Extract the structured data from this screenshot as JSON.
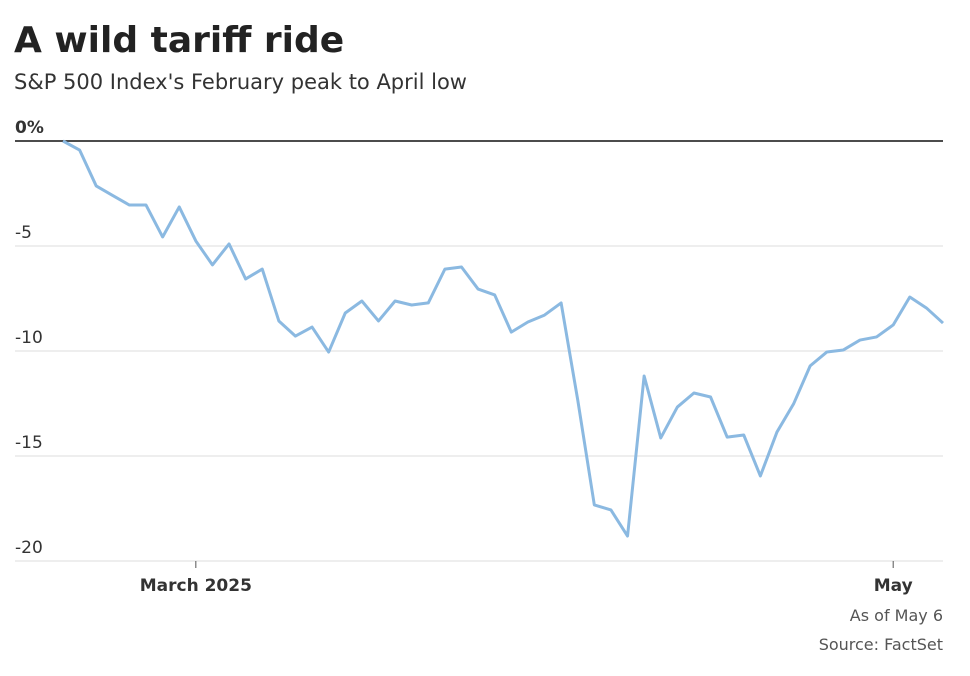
{
  "chart_data": {
    "type": "line",
    "title": "A wild tariff ride",
    "subtitle": "S&P 500 Index's February peak to April low",
    "notes": [
      "As of May 6",
      "Source: FactSet"
    ],
    "categories": [
      null,
      null,
      null,
      null,
      null,
      null,
      null,
      null,
      "March 2025",
      null,
      null,
      null,
      null,
      null,
      null,
      null,
      null,
      null,
      null,
      null,
      null,
      null,
      null,
      null,
      null,
      null,
      null,
      null,
      null,
      null,
      null,
      null,
      null,
      null,
      null,
      null,
      null,
      null,
      null,
      null,
      null,
      null,
      null,
      null,
      null,
      null,
      null,
      null,
      null,
      null,
      "May",
      null,
      null,
      null
    ],
    "values": [
      0,
      -0.43,
      -2.14,
      -2.6,
      -3.05,
      -3.05,
      -4.57,
      -3.14,
      -4.76,
      -5.9,
      -4.9,
      -6.57,
      -6.1,
      -8.57,
      -9.29,
      -8.86,
      -10.05,
      -8.19,
      -7.62,
      -8.57,
      -7.62,
      -7.81,
      -7.71,
      -6.1,
      -6.0,
      -7.05,
      -7.33,
      -9.1,
      -8.62,
      -8.29,
      -7.71,
      -12.33,
      -17.33,
      -17.57,
      -18.81,
      -11.19,
      -14.14,
      -12.67,
      -12.0,
      -12.19,
      -14.1,
      -14.0,
      -15.95,
      -13.86,
      -12.52,
      -10.71,
      -10.05,
      -9.95,
      -9.48,
      -9.33,
      -8.76,
      -7.43,
      -7.95,
      -8.67
    ],
    "color": "#8bb9e1",
    "ylim": [
      -20,
      0
    ],
    "yticks": [
      -20,
      -15,
      -10,
      -5,
      {
        "value": 0,
        "label": "0%"
      }
    ],
    "grid": true
  }
}
